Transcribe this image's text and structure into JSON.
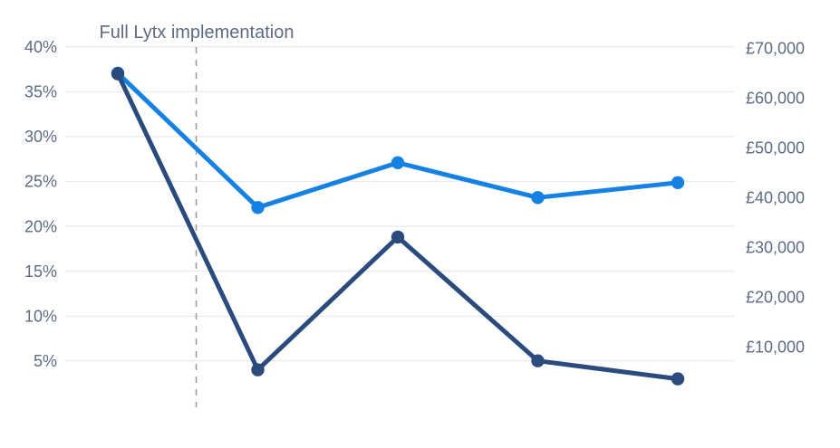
{
  "colors": {
    "background": "#ffffff",
    "text": "#5d6b83",
    "gridline": "#e4e6e9",
    "dashed_line": "#949aa3",
    "series_dark": "#2b4b7d",
    "series_light": "#1581e2"
  },
  "chart_data": {
    "type": "line",
    "title": "",
    "annotation": {
      "label": "Full Lytx implementation",
      "style": "dashed-vertical-line",
      "position_between_points": [
        1,
        2
      ]
    },
    "x": [
      1,
      2,
      3,
      4,
      5
    ],
    "x_tick_labels": [],
    "left_axis": {
      "unit": "percent",
      "tick_values": [
        40,
        35,
        30,
        25,
        20,
        15,
        10,
        5
      ],
      "tick_labels": [
        "40%",
        "35%",
        "30%",
        "25%",
        "20%",
        "15%",
        "10%",
        "5%"
      ],
      "range": [
        0,
        42
      ]
    },
    "right_axis": {
      "unit": "gbp",
      "tick_values": [
        70000,
        60000,
        50000,
        40000,
        30000,
        20000,
        10000
      ],
      "tick_labels": [
        "£70,000",
        "£60,000",
        "£50,000",
        "£40,000",
        "£30,000",
        "£20,000",
        "£10,000"
      ],
      "range": [
        0,
        73000
      ]
    },
    "series": [
      {
        "name": "percentage-series-dark-navy",
        "axis": "left",
        "color": "#2b4b7d",
        "values": [
          37,
          4,
          18.8,
          5,
          3
        ]
      },
      {
        "name": "cost-series-light-blue",
        "axis": "right",
        "color": "#1581e2",
        "values": [
          65000,
          38000,
          47000,
          40000,
          43000
        ]
      }
    ],
    "grid": "horizontal",
    "legend": "none"
  }
}
